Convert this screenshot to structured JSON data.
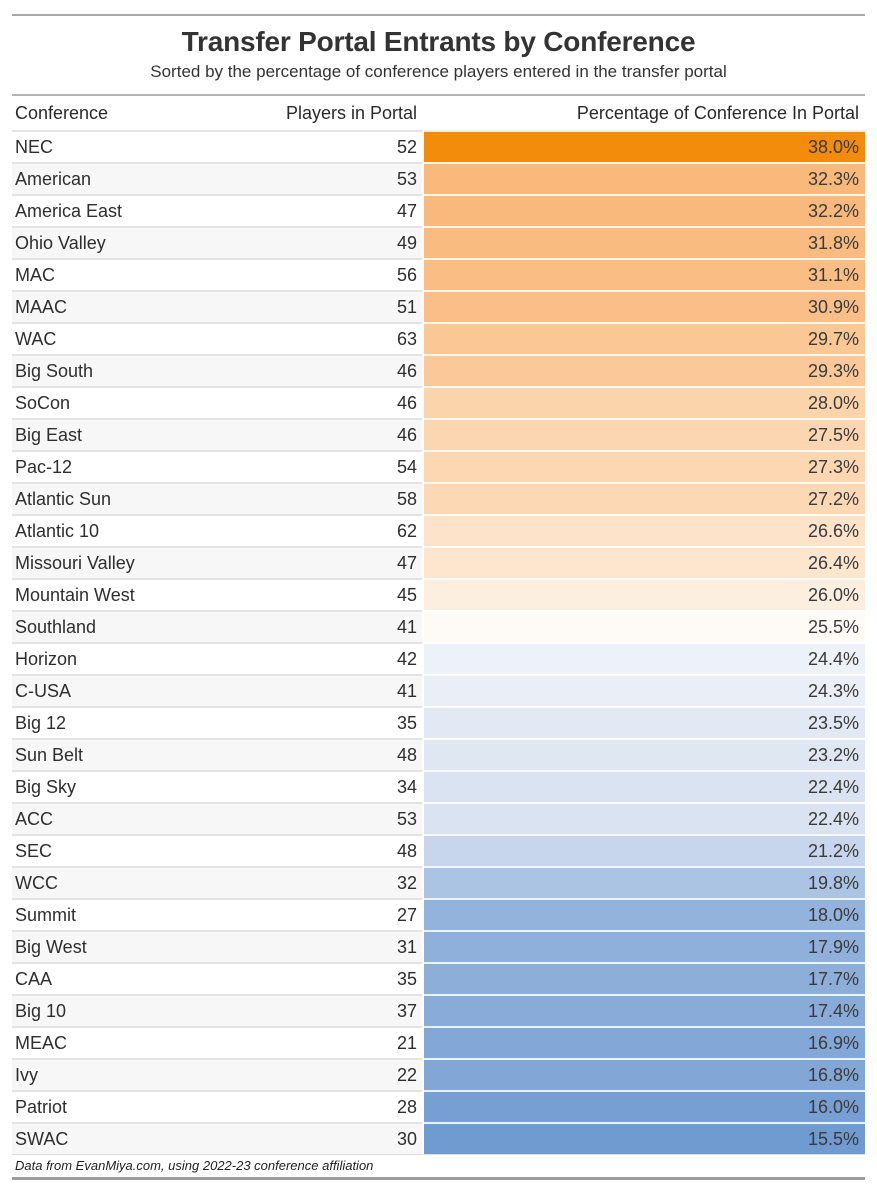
{
  "title": "Transfer Portal Entrants by Conference",
  "subtitle": "Sorted by the percentage of conference players entered in the transfer portal",
  "columns": [
    "Conference",
    "Players in Portal",
    "Percentage of Conference In Portal"
  ],
  "footer": "Data from EvanMiya.com, using 2022-23 conference affiliation",
  "chart_data": {
    "type": "table",
    "title": "Transfer Portal Entrants by Conference",
    "subtitle": "Sorted by the percentage of conference players entered in the transfer portal",
    "columns": [
      "Conference",
      "Players in Portal",
      "Percentage of Conference In Portal"
    ],
    "sort": "percentage descending",
    "color_scale": {
      "high": "#F28C0A",
      "mid": "#FEFCF8",
      "low": "#6F9BD1"
    },
    "rows": [
      {
        "conference": "NEC",
        "players": 52,
        "pct": 38.0,
        "pct_label": "38.0%",
        "color": "#F28C0A"
      },
      {
        "conference": "American",
        "players": 53,
        "pct": 32.3,
        "pct_label": "32.3%",
        "color": "#F9B97B"
      },
      {
        "conference": "America East",
        "players": 47,
        "pct": 32.2,
        "pct_label": "32.2%",
        "color": "#F9B97C"
      },
      {
        "conference": "Ohio Valley",
        "players": 49,
        "pct": 31.8,
        "pct_label": "31.8%",
        "color": "#FABB80"
      },
      {
        "conference": "MAC",
        "players": 56,
        "pct": 31.1,
        "pct_label": "31.1%",
        "color": "#FABE85"
      },
      {
        "conference": "MAAC",
        "players": 51,
        "pct": 30.9,
        "pct_label": "30.9%",
        "color": "#FABF88"
      },
      {
        "conference": "WAC",
        "players": 63,
        "pct": 29.7,
        "pct_label": "29.7%",
        "color": "#FBC794"
      },
      {
        "conference": "Big South",
        "players": 46,
        "pct": 29.3,
        "pct_label": "29.3%",
        "color": "#FBC999"
      },
      {
        "conference": "SoCon",
        "players": 46,
        "pct": 28.0,
        "pct_label": "28.0%",
        "color": "#FCD4AC"
      },
      {
        "conference": "Big East",
        "players": 46,
        "pct": 27.5,
        "pct_label": "27.5%",
        "color": "#FCD6B0"
      },
      {
        "conference": "Pac-12",
        "players": 54,
        "pct": 27.3,
        "pct_label": "27.3%",
        "color": "#FCD7B2"
      },
      {
        "conference": "Atlantic Sun",
        "players": 58,
        "pct": 27.2,
        "pct_label": "27.2%",
        "color": "#FCD8B4"
      },
      {
        "conference": "Atlantic 10",
        "players": 62,
        "pct": 26.6,
        "pct_label": "26.6%",
        "color": "#FDE3C9"
      },
      {
        "conference": "Missouri Valley",
        "players": 47,
        "pct": 26.4,
        "pct_label": "26.4%",
        "color": "#FDE5CE"
      },
      {
        "conference": "Mountain West",
        "players": 45,
        "pct": 26.0,
        "pct_label": "26.0%",
        "color": "#FDEFE0"
      },
      {
        "conference": "Southland",
        "players": 41,
        "pct": 25.5,
        "pct_label": "25.5%",
        "color": "#FEFBF7"
      },
      {
        "conference": "Horizon",
        "players": 42,
        "pct": 24.4,
        "pct_label": "24.4%",
        "color": "#EDF1F8"
      },
      {
        "conference": "C-USA",
        "players": 41,
        "pct": 24.3,
        "pct_label": "24.3%",
        "color": "#EAEFF7"
      },
      {
        "conference": "Big 12",
        "players": 35,
        "pct": 23.5,
        "pct_label": "23.5%",
        "color": "#E2E9F4"
      },
      {
        "conference": "Sun Belt",
        "players": 48,
        "pct": 23.2,
        "pct_label": "23.2%",
        "color": "#DFE7F3"
      },
      {
        "conference": "Big Sky",
        "players": 34,
        "pct": 22.4,
        "pct_label": "22.4%",
        "color": "#D9E3F1"
      },
      {
        "conference": "ACC",
        "players": 53,
        "pct": 22.4,
        "pct_label": "22.4%",
        "color": "#D9E3F1"
      },
      {
        "conference": "SEC",
        "players": 48,
        "pct": 21.2,
        "pct_label": "21.2%",
        "color": "#C7D6EC"
      },
      {
        "conference": "WCC",
        "players": 32,
        "pct": 19.8,
        "pct_label": "19.8%",
        "color": "#ACC4E3"
      },
      {
        "conference": "Summit",
        "players": 27,
        "pct": 18.0,
        "pct_label": "18.0%",
        "color": "#93B2DC"
      },
      {
        "conference": "Big West",
        "players": 31,
        "pct": 17.9,
        "pct_label": "17.9%",
        "color": "#8FB0DA"
      },
      {
        "conference": "CAA",
        "players": 35,
        "pct": 17.7,
        "pct_label": "17.7%",
        "color": "#8CAED9"
      },
      {
        "conference": "Big 10",
        "players": 37,
        "pct": 17.4,
        "pct_label": "17.4%",
        "color": "#88ABD8"
      },
      {
        "conference": "MEAC",
        "players": 21,
        "pct": 16.9,
        "pct_label": "16.9%",
        "color": "#83A7D6"
      },
      {
        "conference": "Ivy",
        "players": 22,
        "pct": 16.8,
        "pct_label": "16.8%",
        "color": "#82A6D5"
      },
      {
        "conference": "Patriot",
        "players": 28,
        "pct": 16.0,
        "pct_label": "16.0%",
        "color": "#789FD3"
      },
      {
        "conference": "SWAC",
        "players": 30,
        "pct": 15.5,
        "pct_label": "15.5%",
        "color": "#6F9BD1"
      }
    ]
  }
}
